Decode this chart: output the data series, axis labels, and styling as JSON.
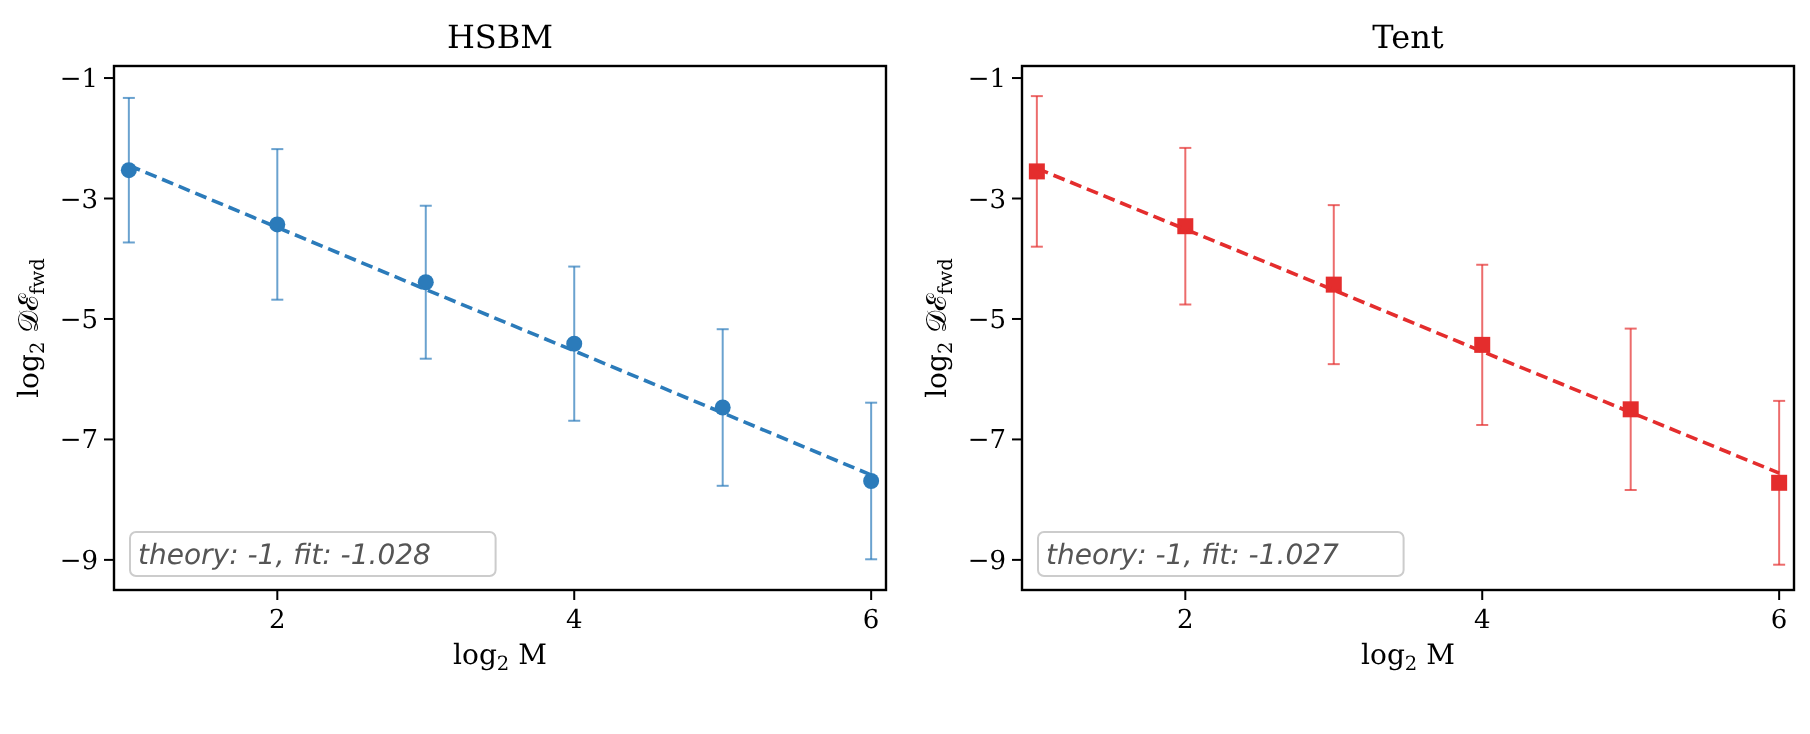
{
  "chart_data": [
    {
      "type": "scatter",
      "title": "HSBM",
      "xlabel": "log$_{2}$ M",
      "ylabel": "log$_{2}$ 𝒟ℰ$_{fwd}$",
      "x": [
        1,
        2,
        3,
        4,
        5,
        6
      ],
      "xlim": [
        0.9,
        6.1
      ],
      "ylim": [
        -9.5,
        -0.8
      ],
      "xticks": [
        2,
        4,
        6
      ],
      "yticks": [
        -1,
        -3,
        -5,
        -7,
        -9
      ],
      "grid": false,
      "series": [
        {
          "color": "#2b7bba",
          "marker": "circle",
          "values": [
            -2.53,
            -3.43,
            -4.39,
            -5.41,
            -6.47,
            -7.69
          ],
          "errors": [
            1.2,
            1.25,
            1.27,
            1.28,
            1.3,
            1.3
          ]
        },
        {
          "type": "line",
          "color": "#2b7bba",
          "marker": "none",
          "line_style": "dashed",
          "values": [
            -2.45,
            -3.48,
            -4.51,
            -5.53,
            -6.56,
            -7.59
          ]
        }
      ],
      "annotations": [
        "theory: -1, fit: -1.028"
      ]
    },
    {
      "type": "scatter",
      "title": "Tent",
      "xlabel": "log$_{2}$ M",
      "ylabel": "log$_{2}$ 𝒟ℰ$_{fwd}$",
      "x": [
        1,
        2,
        3,
        4,
        5,
        6
      ],
      "xlim": [
        0.9,
        6.1
      ],
      "ylim": [
        -9.5,
        -0.8
      ],
      "xticks": [
        2,
        4,
        6
      ],
      "yticks": [
        -1,
        -3,
        -5,
        -7,
        -9
      ],
      "grid": false,
      "series": [
        {
          "color": "#e42d2d",
          "marker": "square",
          "values": [
            -2.55,
            -3.46,
            -4.43,
            -5.43,
            -6.5,
            -7.72
          ],
          "errors": [
            1.25,
            1.3,
            1.32,
            1.33,
            1.34,
            1.36
          ]
        },
        {
          "type": "line",
          "color": "#e42d2d",
          "marker": "none",
          "line_style": "dashed",
          "values": [
            -2.5,
            -3.51,
            -4.52,
            -5.54,
            -6.55,
            -7.56
          ]
        }
      ],
      "annotations": [
        "theory: -1, fit: -1.027"
      ]
    }
  ]
}
